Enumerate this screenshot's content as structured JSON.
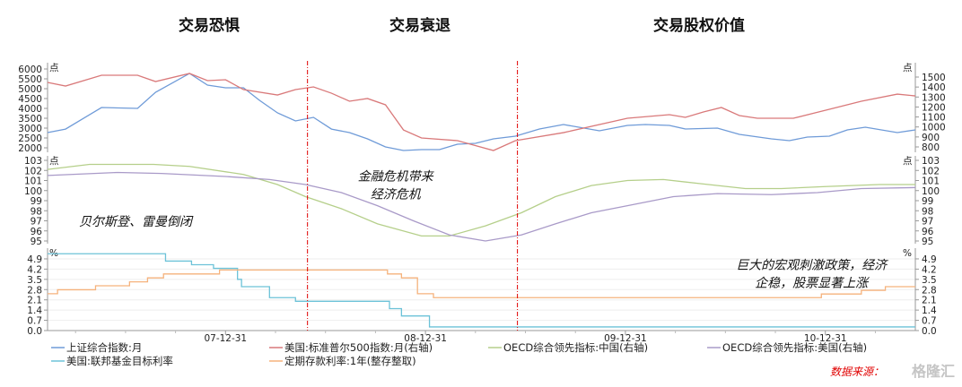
{
  "chart_data": {
    "type": "line",
    "titles": [
      "交易恐惧",
      "交易衰退",
      "交易股权价值"
    ],
    "annotations": [
      {
        "lines": [
          "贝尔斯登、雷曼倒闭"
        ],
        "x": 2007.55,
        "panel": 2,
        "y": 96.5
      },
      {
        "lines": [
          "金融危机带来",
          "经济危机"
        ],
        "x": 2008.85,
        "panel": 2,
        "y": 101.0
      },
      {
        "lines": [
          "巨大的宏观刺激政策，经济",
          "企稳，股票显著上涨"
        ],
        "x": 2010.93,
        "panel": 3,
        "y": 4.2
      }
    ],
    "xlim": [
      2007.11,
      2011.45
    ],
    "xticks": [
      {
        "x": 2008.0,
        "label": "07-12-31"
      },
      {
        "x": 2009.0,
        "label": "08-12-31"
      },
      {
        "x": 2010.0,
        "label": "09-12-31"
      },
      {
        "x": 2011.0,
        "label": "10-12-31"
      }
    ],
    "phase_dividers": [
      2008.41,
      2009.46
    ],
    "panels": [
      {
        "unit_left": "点",
        "unit_right": "点",
        "left_lim": [
          2000,
          6000
        ],
        "left_ticks": [
          2000,
          2500,
          3000,
          3500,
          4000,
          4500,
          5000,
          5500,
          6000
        ],
        "right_lim": [
          800,
          1500
        ],
        "right_ticks": [
          800,
          900,
          1000,
          1100,
          1200,
          1300,
          1400,
          1500
        ]
      },
      {
        "unit_left": "点",
        "unit_right": "点",
        "left_lim": [
          95,
          103
        ],
        "left_ticks": [
          95,
          96,
          97,
          98,
          99,
          100,
          101,
          102,
          103
        ],
        "right_lim": [
          95,
          103
        ],
        "right_ticks": [
          95,
          96,
          97,
          98,
          99,
          100,
          101,
          102,
          103
        ]
      },
      {
        "unit_left": "%",
        "unit_right": "%",
        "left_lim": [
          0,
          5.4
        ],
        "left_ticks": [
          0.0,
          0.7,
          1.4,
          2.1,
          2.8,
          3.5,
          4.2,
          4.9
        ],
        "right_lim": [
          0,
          5.4
        ],
        "right_ticks": [
          0.0,
          0.7,
          1.4,
          2.1,
          2.8,
          3.5,
          4.2,
          4.9
        ]
      }
    ],
    "series": [
      {
        "name": "上证综合指数:月",
        "color": "#6f9bd8",
        "panel": 0,
        "axis": "left",
        "step": false,
        "points": [
          [
            2007.11,
            2773
          ],
          [
            2007.2,
            2950
          ],
          [
            2007.38,
            4045
          ],
          [
            2007.56,
            4000
          ],
          [
            2007.65,
            4818
          ],
          [
            2007.82,
            5773
          ],
          [
            2007.91,
            5180
          ],
          [
            2008.0,
            5045
          ],
          [
            2008.09,
            5045
          ],
          [
            2008.17,
            4410
          ],
          [
            2008.26,
            3773
          ],
          [
            2008.35,
            3364
          ],
          [
            2008.44,
            3545
          ],
          [
            2008.53,
            2950
          ],
          [
            2008.62,
            2773
          ],
          [
            2008.71,
            2455
          ],
          [
            2008.8,
            2045
          ],
          [
            2008.89,
            1864
          ],
          [
            2008.98,
            1909
          ],
          [
            2009.07,
            1909
          ],
          [
            2009.16,
            2182
          ],
          [
            2009.25,
            2227
          ],
          [
            2009.34,
            2455
          ],
          [
            2009.45,
            2590
          ],
          [
            2009.57,
            2955
          ],
          [
            2009.69,
            3182
          ],
          [
            2009.87,
            2864
          ],
          [
            2010.01,
            3136
          ],
          [
            2010.1,
            3182
          ],
          [
            2010.22,
            3136
          ],
          [
            2010.3,
            2955
          ],
          [
            2010.46,
            3000
          ],
          [
            2010.57,
            2682
          ],
          [
            2010.73,
            2455
          ],
          [
            2010.82,
            2364
          ],
          [
            2010.91,
            2545
          ],
          [
            2011.02,
            2590
          ],
          [
            2011.11,
            2909
          ],
          [
            2011.2,
            3045
          ],
          [
            2011.36,
            2773
          ],
          [
            2011.45,
            2909
          ]
        ]
      },
      {
        "name": "美国:标准普尔500指数:月(右轴)",
        "color": "#d9797a",
        "panel": 0,
        "axis": "right",
        "step": false,
        "points": [
          [
            2007.11,
            1446
          ],
          [
            2007.2,
            1410
          ],
          [
            2007.38,
            1518
          ],
          [
            2007.56,
            1518
          ],
          [
            2007.65,
            1455
          ],
          [
            2007.82,
            1536
          ],
          [
            2007.91,
            1464
          ],
          [
            2008.0,
            1473
          ],
          [
            2008.09,
            1374
          ],
          [
            2008.26,
            1320
          ],
          [
            2008.35,
            1374
          ],
          [
            2008.44,
            1401
          ],
          [
            2008.53,
            1338
          ],
          [
            2008.62,
            1258
          ],
          [
            2008.71,
            1285
          ],
          [
            2008.8,
            1222
          ],
          [
            2008.89,
            970
          ],
          [
            2008.98,
            890
          ],
          [
            2009.16,
            863
          ],
          [
            2009.34,
            764
          ],
          [
            2009.45,
            863
          ],
          [
            2009.69,
            943
          ],
          [
            2010.01,
            1087
          ],
          [
            2010.22,
            1123
          ],
          [
            2010.3,
            1096
          ],
          [
            2010.39,
            1150
          ],
          [
            2010.48,
            1195
          ],
          [
            2010.57,
            1114
          ],
          [
            2010.66,
            1087
          ],
          [
            2010.84,
            1087
          ],
          [
            2011.02,
            1177
          ],
          [
            2011.18,
            1258
          ],
          [
            2011.36,
            1329
          ],
          [
            2011.45,
            1311
          ]
        ]
      },
      {
        "name": "OECD综合领先指标:中国(右轴)",
        "color": "#b5cf8a",
        "panel": 1,
        "axis": "right",
        "step": false,
        "points": [
          [
            2007.11,
            102.1
          ],
          [
            2007.32,
            102.6
          ],
          [
            2007.64,
            102.6
          ],
          [
            2007.82,
            102.4
          ],
          [
            2008.09,
            101.6
          ],
          [
            2008.26,
            100.6
          ],
          [
            2008.4,
            99.4
          ],
          [
            2008.58,
            98.2
          ],
          [
            2008.76,
            96.7
          ],
          [
            2008.98,
            95.5
          ],
          [
            2009.12,
            95.5
          ],
          [
            2009.3,
            96.5
          ],
          [
            2009.48,
            97.8
          ],
          [
            2009.65,
            99.4
          ],
          [
            2009.83,
            100.5
          ],
          [
            2010.01,
            101.0
          ],
          [
            2010.19,
            101.1
          ],
          [
            2010.37,
            100.7
          ],
          [
            2010.6,
            100.2
          ],
          [
            2010.78,
            100.2
          ],
          [
            2011.0,
            100.4
          ],
          [
            2011.27,
            100.6
          ],
          [
            2011.45,
            100.6
          ]
        ]
      },
      {
        "name": "OECD综合领先指标:美国(右轴)",
        "color": "#a99ac8",
        "panel": 1,
        "axis": "right",
        "step": false,
        "points": [
          [
            2007.11,
            101.5
          ],
          [
            2007.46,
            101.8
          ],
          [
            2007.68,
            101.7
          ],
          [
            2008.0,
            101.4
          ],
          [
            2008.22,
            101.1
          ],
          [
            2008.4,
            100.6
          ],
          [
            2008.58,
            99.8
          ],
          [
            2008.76,
            98.5
          ],
          [
            2008.94,
            97.0
          ],
          [
            2009.12,
            95.6
          ],
          [
            2009.3,
            95.0
          ],
          [
            2009.48,
            95.6
          ],
          [
            2009.65,
            96.7
          ],
          [
            2009.83,
            97.8
          ],
          [
            2010.01,
            98.5
          ],
          [
            2010.24,
            99.4
          ],
          [
            2010.46,
            99.7
          ],
          [
            2010.73,
            99.6
          ],
          [
            2010.96,
            99.8
          ],
          [
            2011.18,
            100.2
          ],
          [
            2011.45,
            100.3
          ]
        ]
      },
      {
        "name": "美国:联邦基金目标利率",
        "color": "#6cc2d8",
        "panel": 2,
        "axis": "left",
        "step": true,
        "points": [
          [
            2007.11,
            5.25
          ],
          [
            2007.7,
            4.75
          ],
          [
            2007.83,
            4.5
          ],
          [
            2007.94,
            4.25
          ],
          [
            2008.06,
            3.5
          ],
          [
            2008.08,
            3.0
          ],
          [
            2008.22,
            2.25
          ],
          [
            2008.35,
            2.0
          ],
          [
            2008.82,
            1.5
          ],
          [
            2008.88,
            1.0
          ],
          [
            2009.02,
            0.25
          ],
          [
            2011.45,
            0.25
          ]
        ]
      },
      {
        "name": "定期存款利率:1年(整存整取)",
        "color": "#f5b27c",
        "panel": 2,
        "axis": "left",
        "step": true,
        "points": [
          [
            2007.11,
            2.52
          ],
          [
            2007.16,
            2.79
          ],
          [
            2007.35,
            3.06
          ],
          [
            2007.52,
            3.33
          ],
          [
            2007.61,
            3.6
          ],
          [
            2007.69,
            3.87
          ],
          [
            2007.97,
            4.14
          ],
          [
            2008.81,
            3.87
          ],
          [
            2008.88,
            3.6
          ],
          [
            2008.96,
            2.52
          ],
          [
            2009.04,
            2.25
          ],
          [
            2010.98,
            2.5
          ],
          [
            2011.18,
            2.75
          ],
          [
            2011.3,
            3.0
          ],
          [
            2011.45,
            3.0
          ]
        ]
      }
    ],
    "legend_position": "bottom",
    "source": "数据来源：",
    "watermark": "格隆汇"
  }
}
